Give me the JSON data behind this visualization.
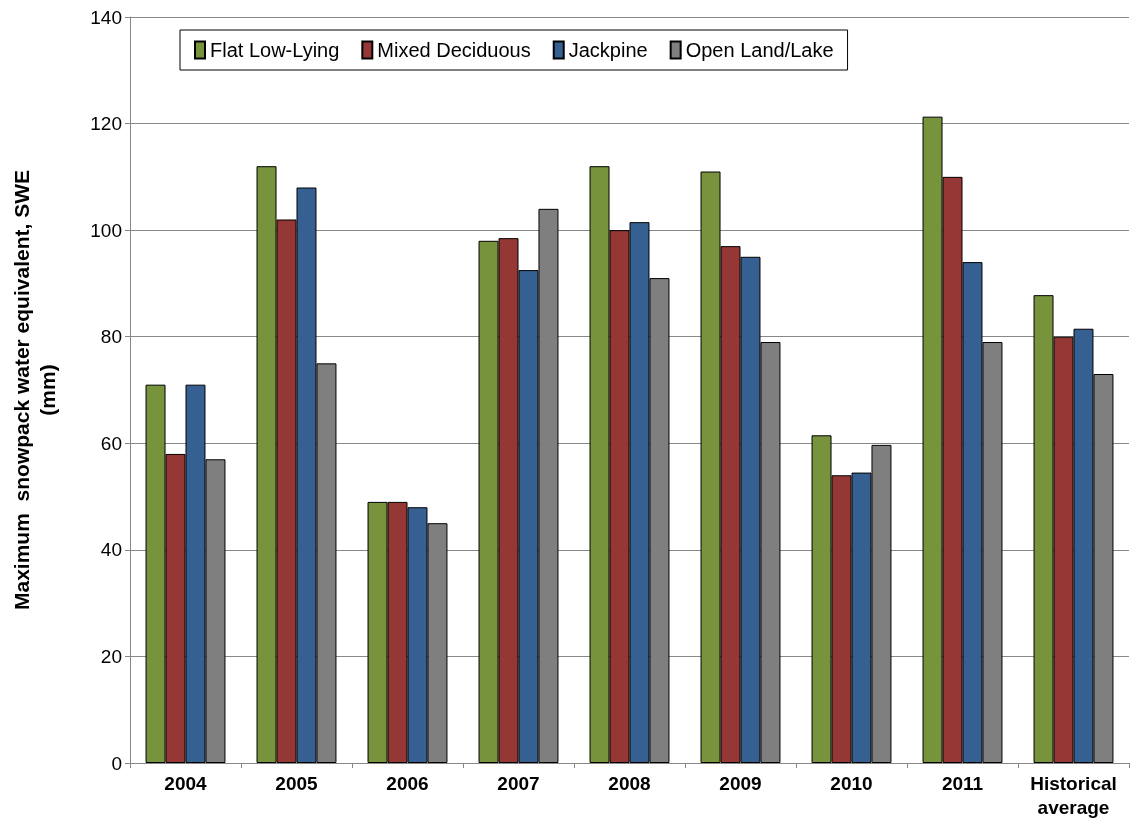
{
  "chart_data": {
    "type": "bar",
    "ylabel": "Maximum  snowpack water equivalent, SWE\n(mm)",
    "categories": [
      "2004",
      "2005",
      "2006",
      "2007",
      "2008",
      "2009",
      "2010",
      "2011",
      "Historical\naverage"
    ],
    "series": [
      {
        "name": "Flat Low-Lying",
        "color": "#77933c",
        "values": [
          71,
          112,
          49,
          98,
          112,
          111,
          61.5,
          121.3,
          87.8
        ]
      },
      {
        "name": "Mixed Deciduous",
        "color": "#953735",
        "values": [
          58,
          102,
          49,
          98.5,
          100,
          97,
          54,
          110,
          80
        ]
      },
      {
        "name": "Jackpine",
        "color": "#376092",
        "values": [
          71,
          108,
          48,
          92.5,
          101.5,
          95,
          54.5,
          94,
          81.5
        ]
      },
      {
        "name": "Open Land/Lake",
        "color": "#7f7f7f",
        "values": [
          57,
          75,
          45,
          104,
          91,
          79,
          59.7,
          79,
          73
        ]
      }
    ],
    "ylim": [
      0,
      140
    ],
    "yticks": [
      0,
      20,
      40,
      60,
      80,
      100,
      120,
      140
    ],
    "grid": "y",
    "legend": "top"
  }
}
